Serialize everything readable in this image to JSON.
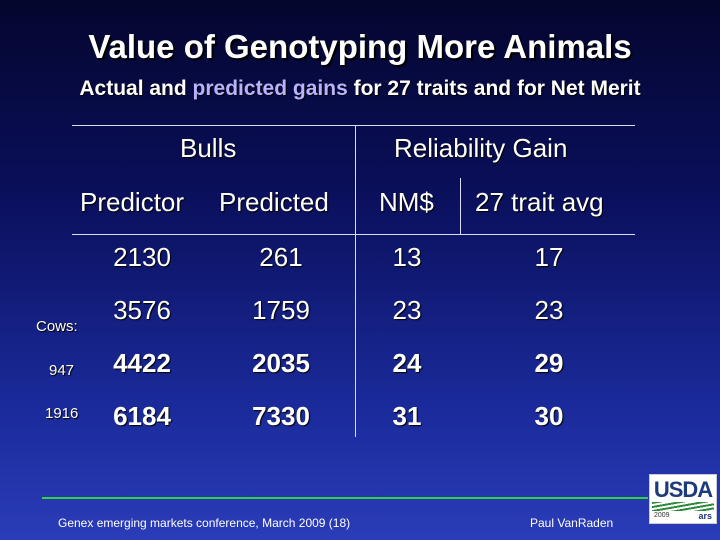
{
  "slide": {
    "title": "Value of Genotyping More Animals",
    "subtitle_pre": "Actual and ",
    "subtitle_highlight": "predicted gains",
    "subtitle_post": " for 27 traits and for Net Merit"
  },
  "table": {
    "group_headers": [
      "Bulls",
      "Reliability Gain"
    ],
    "columns": [
      "Predictor",
      "Predicted",
      "NM$",
      "27 trait avg"
    ],
    "rows": [
      {
        "predictor": "2130",
        "predicted": "261",
        "nm": "13",
        "avg": "17",
        "side": ""
      },
      {
        "predictor": "3576",
        "predicted": "1759",
        "nm": "23",
        "avg": "23",
        "side": "Cows:"
      },
      {
        "predictor": "4422",
        "predicted": "2035",
        "nm": "24",
        "avg": "29",
        "side": "947"
      },
      {
        "predictor": "6184",
        "predicted": "7330",
        "nm": "31",
        "avg": "30",
        "side": "1916"
      }
    ]
  },
  "footer": {
    "left": "Genex emerging markets conference, March 2009 (18)",
    "right": "Paul VanRaden"
  },
  "logo": {
    "name": "USDA",
    "year": "2009",
    "agency": "ars"
  },
  "colors": {
    "highlight": "#b9b3ff",
    "footer_line": "#2ed33f"
  }
}
